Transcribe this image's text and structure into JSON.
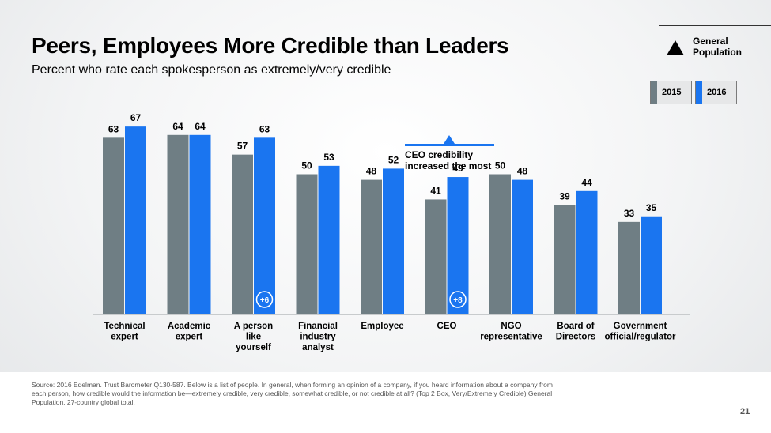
{
  "header": {
    "title": "Peers, Employees More Credible than Leaders",
    "subtitle": "Percent who rate each spokesperson as extremely/very credible"
  },
  "population_legend": {
    "icon": "triangle-icon",
    "label_line1": "General",
    "label_line2": "Population"
  },
  "series_legend": [
    {
      "label": "2015",
      "color": "#6f7e84"
    },
    {
      "label": "2016",
      "color": "#1a75f0"
    }
  ],
  "annotation": {
    "line1": "CEO credibility",
    "line2": "increased the most"
  },
  "chart_data": {
    "type": "bar",
    "title": "Peers, Employees More Credible than Leaders",
    "subtitle": "Percent who rate each spokesperson as extremely/very credible",
    "categories": [
      [
        "Technical",
        "expert"
      ],
      [
        "Academic",
        "expert"
      ],
      [
        "A person",
        "like",
        "yourself"
      ],
      [
        "Financial",
        "industry",
        "analyst"
      ],
      [
        "Employee"
      ],
      [
        "CEO"
      ],
      [
        "NGO",
        "representative"
      ],
      [
        "Board of",
        "Directors"
      ],
      [
        "Government",
        "official/regulator"
      ]
    ],
    "series": [
      {
        "name": "2015",
        "color": "#6f7e84",
        "values": [
          63,
          64,
          57,
          50,
          48,
          41,
          50,
          39,
          33
        ]
      },
      {
        "name": "2016",
        "color": "#1a75f0",
        "values": [
          67,
          64,
          63,
          53,
          52,
          49,
          48,
          44,
          35
        ]
      }
    ],
    "change_badges": [
      {
        "category_index": 2,
        "label": "+6"
      },
      {
        "category_index": 5,
        "label": "+8"
      }
    ],
    "ylim": [
      0,
      100
    ],
    "grid": false,
    "legend": "top-right"
  },
  "footer": {
    "source": "Source: 2016 Edelman. Trust Barometer Q130-587. Below is a list of people. In general, when forming an opinion of a company, if you heard information about a company from each person, how credible would the information be—extremely credible, very credible, somewhat credible, or not credible at all? (Top 2 Box, Very/Extremely Credible) General Population, 27-country global total.",
    "page_number": "21"
  }
}
